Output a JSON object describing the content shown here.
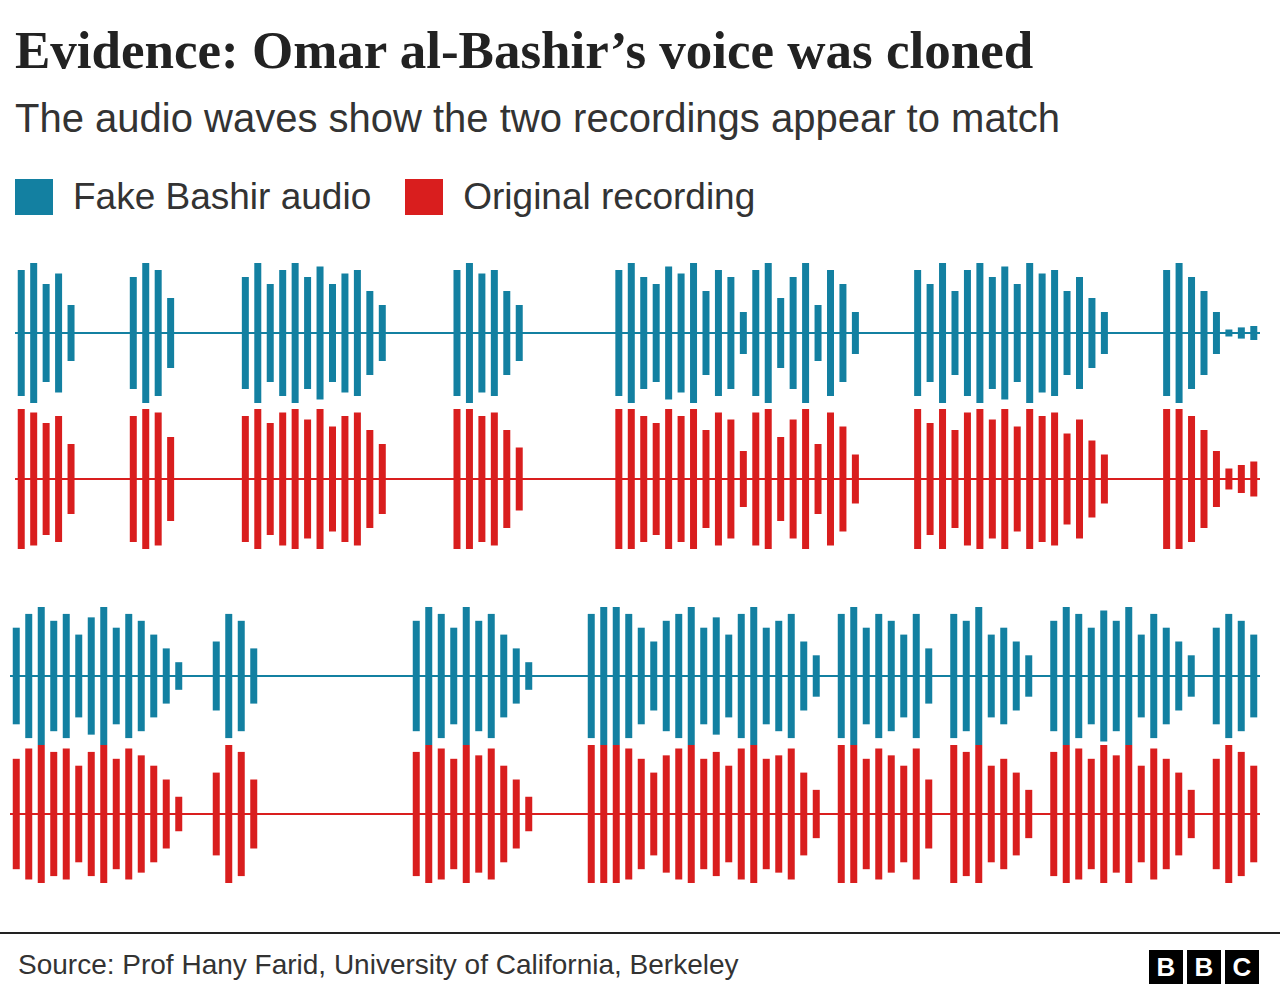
{
  "title": "Evidence: Omar al-Bashir’s voice was cloned",
  "subtitle": "The audio waves show the two recordings appear to match",
  "source": "Source: Prof Hany Farid, University of California, Berkeley",
  "logo": "BBC",
  "chart_data": [
    {
      "type": "waveform",
      "tick_labels": false,
      "ylim": [
        -1,
        1
      ],
      "series": [
        {
          "name": "Fake Bashir audio",
          "color": "#1380a1",
          "values": [
            0.9,
            1,
            0.7,
            0.85,
            0.4,
            0,
            0,
            0,
            0,
            0.8,
            1,
            0.9,
            0.5,
            0,
            0,
            0,
            0,
            0,
            0.8,
            1,
            0.7,
            0.9,
            1,
            0.8,
            0.95,
            0.7,
            0.85,
            0.9,
            0.6,
            0.4,
            0,
            0,
            0,
            0,
            0,
            0.9,
            1,
            0.85,
            0.9,
            0.6,
            0.4,
            0,
            0,
            0,
            0,
            0,
            0,
            0,
            0.9,
            1,
            0.8,
            0.7,
            0.95,
            0.85,
            1,
            0.6,
            0.9,
            0.8,
            0.3,
            0.9,
            1,
            0.5,
            0.8,
            1,
            0.4,
            0.9,
            0.7,
            0.3,
            0,
            0,
            0,
            0,
            0.9,
            0.7,
            1,
            0.6,
            0.9,
            1,
            0.8,
            0.95,
            0.7,
            1,
            0.85,
            0.9,
            0.6,
            0.8,
            0.5,
            0.3,
            0,
            0,
            0,
            0,
            0.9,
            1,
            0.8,
            0.6,
            0.3,
            0.05,
            0.08,
            0.1
          ]
        },
        {
          "name": "Original recording",
          "color": "#d91e1e",
          "values": [
            1,
            0.95,
            0.8,
            0.9,
            0.5,
            0,
            0,
            0,
            0,
            0.9,
            1,
            0.95,
            0.6,
            0,
            0,
            0,
            0,
            0,
            0.9,
            1,
            0.8,
            0.95,
            1,
            0.85,
            1,
            0.75,
            0.9,
            0.95,
            0.7,
            0.5,
            0,
            0,
            0,
            0,
            0,
            1,
            1,
            0.9,
            0.95,
            0.7,
            0.45,
            0,
            0,
            0,
            0,
            0,
            0,
            0,
            1,
            1,
            0.9,
            0.8,
            1,
            0.9,
            1,
            0.7,
            0.95,
            0.85,
            0.4,
            0.95,
            1,
            0.6,
            0.85,
            1,
            0.5,
            0.95,
            0.75,
            0.35,
            0,
            0,
            0,
            0,
            1,
            0.8,
            1,
            0.7,
            0.95,
            1,
            0.85,
            1,
            0.75,
            1,
            0.9,
            0.95,
            0.65,
            0.85,
            0.55,
            0.35,
            0,
            0,
            0,
            0,
            1,
            1,
            0.9,
            0.7,
            0.4,
            0.15,
            0.2,
            0.25
          ]
        }
      ]
    },
    {
      "type": "waveform",
      "tick_labels": false,
      "ylim": [
        -1,
        1
      ],
      "series": [
        {
          "name": "Fake Bashir audio",
          "color": "#1380a1",
          "values": [
            0.7,
            0.9,
            1,
            0.8,
            0.9,
            0.6,
            0.85,
            1,
            0.7,
            0.9,
            0.8,
            0.6,
            0.4,
            0.2,
            0,
            0,
            0.5,
            0.9,
            0.8,
            0.4,
            0,
            0,
            0,
            0,
            0,
            0,
            0,
            0,
            0,
            0,
            0,
            0,
            0.8,
            1,
            0.9,
            0.7,
            1,
            0.8,
            0.9,
            0.6,
            0.4,
            0.2,
            0,
            0,
            0,
            0,
            0.9,
            1,
            1,
            0.9,
            0.7,
            0.5,
            0.8,
            0.9,
            1,
            0.7,
            0.85,
            0.6,
            0.9,
            1,
            0.7,
            0.8,
            0.9,
            0.5,
            0.3,
            0,
            0.9,
            1,
            0.7,
            0.9,
            0.8,
            0.6,
            0.9,
            0.4,
            0,
            0.9,
            0.8,
            1,
            0.6,
            0.7,
            0.5,
            0.3,
            0,
            0.8,
            1,
            0.9,
            0.7,
            0.95,
            0.8,
            1,
            0.6,
            0.9,
            0.7,
            0.5,
            0.3,
            0,
            0.7,
            0.9,
            0.8,
            0.6
          ]
        },
        {
          "name": "Original recording",
          "color": "#d91e1e",
          "values": [
            0.8,
            0.95,
            1,
            0.9,
            0.95,
            0.7,
            0.9,
            1,
            0.8,
            0.95,
            0.85,
            0.7,
            0.5,
            0.25,
            0,
            0,
            0.6,
            1,
            0.9,
            0.5,
            0,
            0,
            0,
            0,
            0,
            0,
            0,
            0,
            0,
            0,
            0,
            0,
            0.9,
            1,
            0.95,
            0.8,
            1,
            0.85,
            0.95,
            0.7,
            0.5,
            0.25,
            0,
            0,
            0,
            0,
            1,
            1,
            1,
            0.95,
            0.8,
            0.6,
            0.85,
            0.95,
            1,
            0.8,
            0.9,
            0.7,
            0.95,
            1,
            0.8,
            0.85,
            0.95,
            0.6,
            0.35,
            0,
            1,
            1,
            0.8,
            0.95,
            0.85,
            0.7,
            0.95,
            0.5,
            0,
            1,
            0.9,
            1,
            0.7,
            0.8,
            0.6,
            0.35,
            0,
            0.9,
            1,
            0.95,
            0.8,
            1,
            0.85,
            1,
            0.7,
            0.95,
            0.8,
            0.6,
            0.35,
            0,
            0.8,
            1,
            0.9,
            0.7
          ]
        }
      ]
    }
  ]
}
